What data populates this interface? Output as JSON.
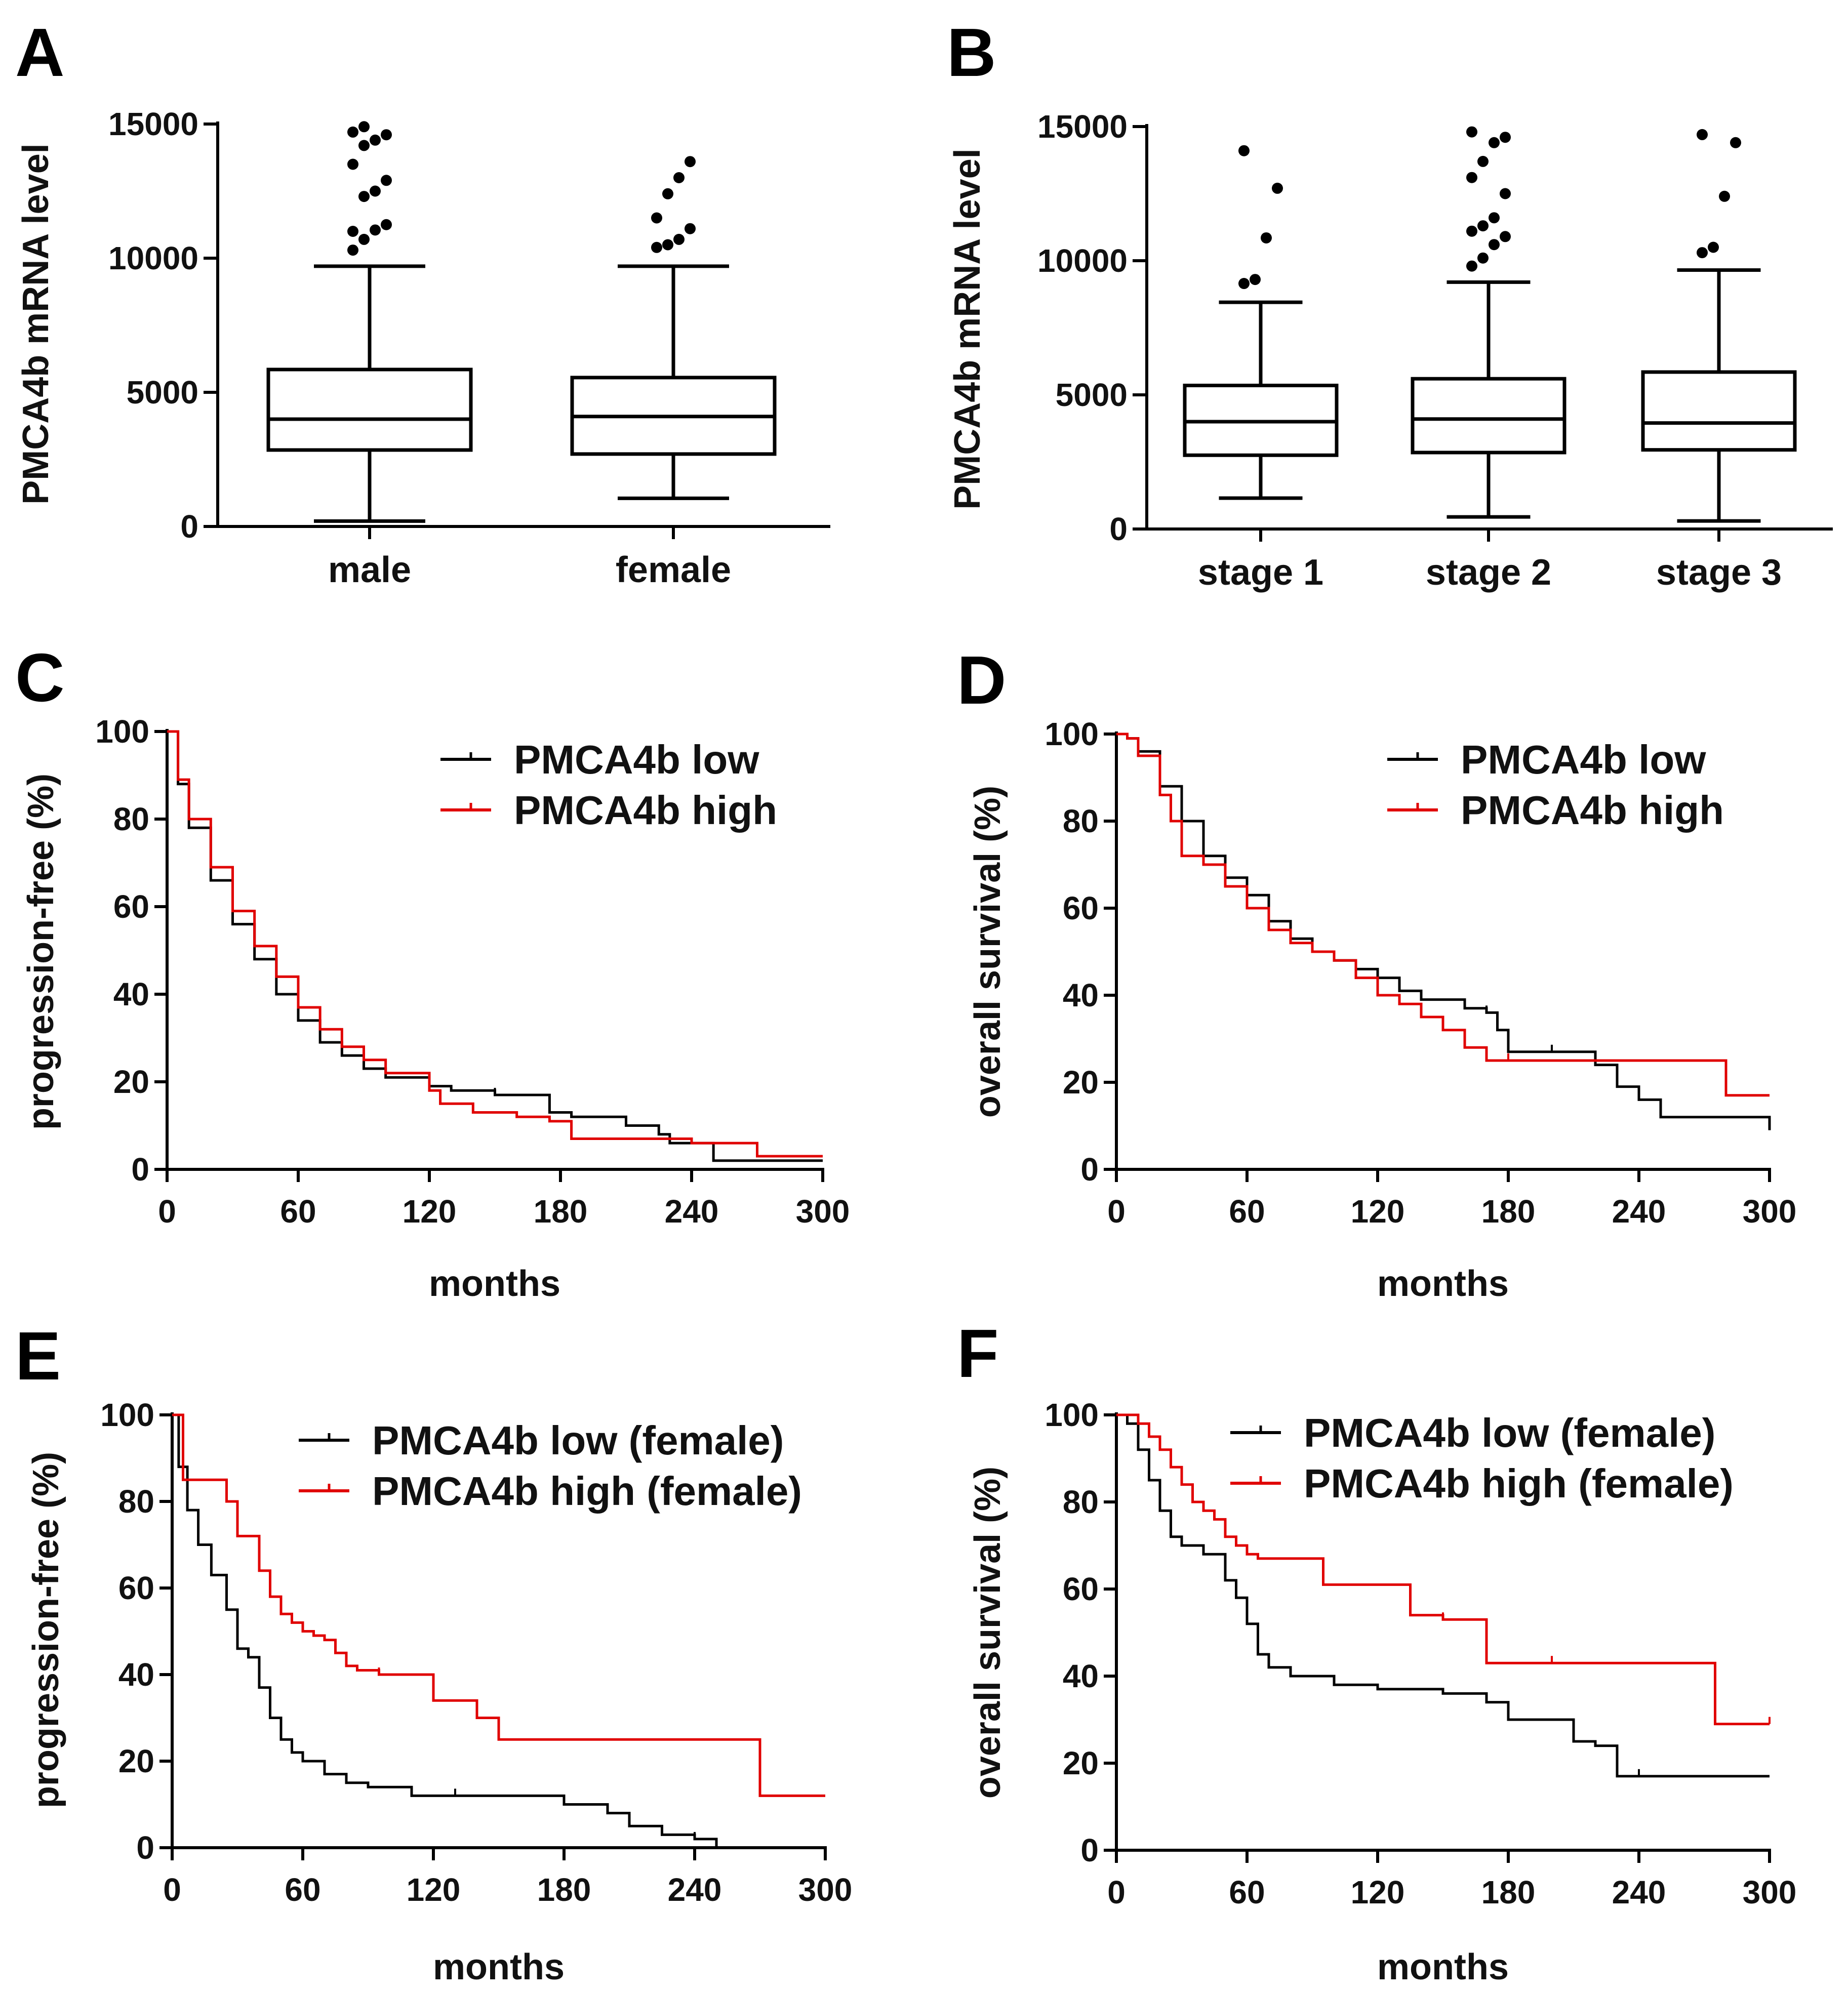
{
  "chart_data": [
    {
      "panel": "A",
      "type": "box",
      "ylabel": "PMCA4b mRNA level",
      "ylim": [
        0,
        15000
      ],
      "yticks": [
        0,
        5000,
        10000,
        15000
      ],
      "ytick_labels": [
        "0",
        "5000",
        "10000",
        "15000"
      ],
      "groups": [
        {
          "name": "male",
          "min": 200,
          "q1": 2850,
          "median": 4000,
          "q3": 5850,
          "max": 9700,
          "outliers": [
            10300,
            10700,
            11050,
            11250,
            11000,
            12300,
            12500,
            12900,
            13500,
            14200,
            14400,
            14600,
            14700,
            14900
          ]
        },
        {
          "name": "female",
          "min": 1050,
          "q1": 2700,
          "median": 4100,
          "q3": 5550,
          "max": 9700,
          "outliers": [
            10400,
            10500,
            10700,
            11100,
            11500,
            12400,
            13000,
            13600
          ]
        }
      ]
    },
    {
      "panel": "B",
      "type": "box",
      "ylabel": "PMCA4b mRNA level",
      "ylim": [
        0,
        15000
      ],
      "yticks": [
        0,
        5000,
        10000,
        15000
      ],
      "ytick_labels": [
        "0",
        "5000",
        "10000",
        "15000"
      ],
      "groups": [
        {
          "name": "stage 1",
          "min": 1150,
          "q1": 2750,
          "median": 4000,
          "q3": 5350,
          "max": 8450,
          "outliers": [
            9150,
            9300,
            10850,
            12700,
            14100
          ]
        },
        {
          "name": "stage 2",
          "min": 450,
          "q1": 2850,
          "median": 4100,
          "q3": 5600,
          "max": 9200,
          "outliers": [
            9800,
            10100,
            10600,
            10900,
            11100,
            11300,
            11600,
            12500,
            13100,
            13700,
            14400,
            14600,
            14800
          ]
        },
        {
          "name": "stage 3",
          "min": 300,
          "q1": 2950,
          "median": 3950,
          "q3": 5850,
          "max": 9650,
          "outliers": [
            10300,
            10500,
            12400,
            14400,
            14700
          ]
        }
      ]
    },
    {
      "panel": "C",
      "type": "line",
      "xlabel": "months",
      "ylabel": "progression-free (%)",
      "xlim": [
        0,
        300
      ],
      "ylim": [
        0,
        100
      ],
      "xticks": [
        0,
        60,
        120,
        180,
        240,
        300
      ],
      "xtick_labels": [
        "0",
        "60",
        "120",
        "180",
        "240",
        "300"
      ],
      "yticks": [
        0,
        20,
        40,
        60,
        80,
        100
      ],
      "ytick_labels": [
        "0",
        "20",
        "40",
        "60",
        "80",
        "100"
      ],
      "series": [
        {
          "name": "PMCA4b low",
          "color": "#000000",
          "x": [
            0,
            5,
            10,
            20,
            30,
            40,
            50,
            60,
            70,
            80,
            90,
            100,
            120,
            130,
            150,
            175,
            185,
            210,
            225,
            230,
            250,
            300
          ],
          "y": [
            100,
            88,
            78,
            66,
            56,
            48,
            40,
            34,
            29,
            26,
            23,
            21,
            19,
            18,
            17,
            13,
            12,
            10,
            8,
            6,
            2,
            2
          ]
        },
        {
          "name": "PMCA4b high",
          "color": "#e00000",
          "x": [
            0,
            5,
            10,
            20,
            30,
            40,
            50,
            60,
            70,
            80,
            90,
            100,
            120,
            125,
            140,
            160,
            175,
            185,
            210,
            240,
            270,
            300
          ],
          "y": [
            100,
            89,
            80,
            69,
            59,
            51,
            44,
            37,
            32,
            28,
            25,
            22,
            18,
            15,
            13,
            12,
            11,
            7,
            7,
            6,
            3,
            3
          ]
        }
      ],
      "legend": "top-right"
    },
    {
      "panel": "D",
      "type": "line",
      "xlabel": "months",
      "ylabel": "overall survival (%)",
      "xlim": [
        0,
        300
      ],
      "ylim": [
        0,
        100
      ],
      "xticks": [
        0,
        60,
        120,
        180,
        240,
        300
      ],
      "xtick_labels": [
        "0",
        "60",
        "120",
        "180",
        "240",
        "300"
      ],
      "yticks": [
        0,
        20,
        40,
        60,
        80,
        100
      ],
      "ytick_labels": [
        "0",
        "20",
        "40",
        "60",
        "80",
        "100"
      ],
      "series": [
        {
          "name": "PMCA4b low",
          "color": "#000000",
          "x": [
            0,
            5,
            10,
            20,
            30,
            40,
            50,
            60,
            70,
            80,
            90,
            100,
            110,
            120,
            130,
            140,
            160,
            170,
            175,
            180,
            200,
            220,
            230,
            240,
            250,
            300
          ],
          "y": [
            100,
            99,
            96,
            88,
            80,
            72,
            67,
            63,
            57,
            53,
            50,
            48,
            46,
            44,
            41,
            39,
            37,
            36,
            32,
            27,
            27,
            24,
            19,
            16,
            12,
            9
          ]
        },
        {
          "name": "PMCA4b high",
          "color": "#e00000",
          "x": [
            0,
            5,
            10,
            20,
            25,
            30,
            40,
            50,
            60,
            70,
            80,
            90,
            100,
            110,
            120,
            130,
            140,
            150,
            160,
            170,
            180,
            240,
            270,
            280,
            300
          ],
          "y": [
            100,
            99,
            95,
            86,
            80,
            72,
            70,
            65,
            60,
            55,
            52,
            50,
            48,
            44,
            40,
            38,
            35,
            32,
            28,
            25,
            25,
            25,
            25,
            17,
            17
          ]
        }
      ],
      "legend": "top-right"
    },
    {
      "panel": "E",
      "type": "line",
      "xlabel": "months",
      "ylabel": "progression-free (%)",
      "xlim": [
        0,
        300
      ],
      "ylim": [
        0,
        100
      ],
      "xticks": [
        0,
        60,
        120,
        180,
        240,
        300
      ],
      "xtick_labels": [
        "0",
        "60",
        "120",
        "180",
        "240",
        "300"
      ],
      "yticks": [
        0,
        20,
        40,
        60,
        80,
        100
      ],
      "ytick_labels": [
        "0",
        "20",
        "40",
        "60",
        "80",
        "100"
      ],
      "series": [
        {
          "name": "PMCA4b low (female)",
          "color": "#000000",
          "x": [
            0,
            3,
            7,
            12,
            18,
            25,
            30,
            35,
            40,
            45,
            50,
            55,
            60,
            70,
            80,
            90,
            110,
            130,
            175,
            180,
            200,
            210,
            225,
            240,
            250
          ],
          "y": [
            100,
            88,
            78,
            70,
            63,
            55,
            46,
            44,
            37,
            30,
            25,
            22,
            20,
            17,
            15,
            14,
            12,
            12,
            12,
            10,
            8,
            5,
            3,
            2,
            0
          ]
        },
        {
          "name": "PMCA4b high (female)",
          "color": "#e00000",
          "x": [
            0,
            5,
            25,
            30,
            40,
            45,
            50,
            55,
            60,
            65,
            70,
            75,
            80,
            85,
            95,
            120,
            140,
            150,
            180,
            240,
            270,
            300
          ],
          "y": [
            100,
            85,
            80,
            72,
            64,
            58,
            54,
            52,
            50,
            49,
            48,
            45,
            42,
            41,
            40,
            34,
            30,
            25,
            25,
            25,
            12,
            12
          ]
        }
      ],
      "legend": "top-right"
    },
    {
      "panel": "F",
      "type": "line",
      "xlabel": "months",
      "ylabel": "overall survival (%)",
      "xlim": [
        0,
        300
      ],
      "ylim": [
        0,
        100
      ],
      "xticks": [
        0,
        60,
        120,
        180,
        240,
        300
      ],
      "xtick_labels": [
        "0",
        "60",
        "120",
        "180",
        "240",
        "300"
      ],
      "yticks": [
        0,
        20,
        40,
        60,
        80,
        100
      ],
      "ytick_labels": [
        "0",
        "20",
        "40",
        "60",
        "80",
        "100"
      ],
      "series": [
        {
          "name": "PMCA4b low (female)",
          "color": "#000000",
          "x": [
            0,
            5,
            10,
            15,
            20,
            25,
            30,
            40,
            50,
            55,
            60,
            65,
            70,
            80,
            100,
            120,
            150,
            170,
            180,
            205,
            210,
            220,
            230,
            240,
            300
          ],
          "y": [
            100,
            98,
            92,
            85,
            78,
            72,
            70,
            68,
            62,
            58,
            52,
            45,
            42,
            40,
            38,
            37,
            36,
            34,
            30,
            30,
            25,
            24,
            17,
            17,
            17
          ]
        },
        {
          "name": "PMCA4b high (female)",
          "color": "#e00000",
          "x": [
            0,
            10,
            15,
            20,
            25,
            30,
            35,
            40,
            45,
            50,
            55,
            60,
            65,
            90,
            95,
            130,
            135,
            150,
            165,
            170,
            200,
            270,
            275,
            300
          ],
          "y": [
            100,
            98,
            95,
            92,
            88,
            84,
            80,
            78,
            76,
            72,
            70,
            68,
            67,
            67,
            61,
            61,
            54,
            53,
            53,
            43,
            43,
            43,
            29,
            29
          ]
        }
      ],
      "legend": "top-right"
    }
  ]
}
